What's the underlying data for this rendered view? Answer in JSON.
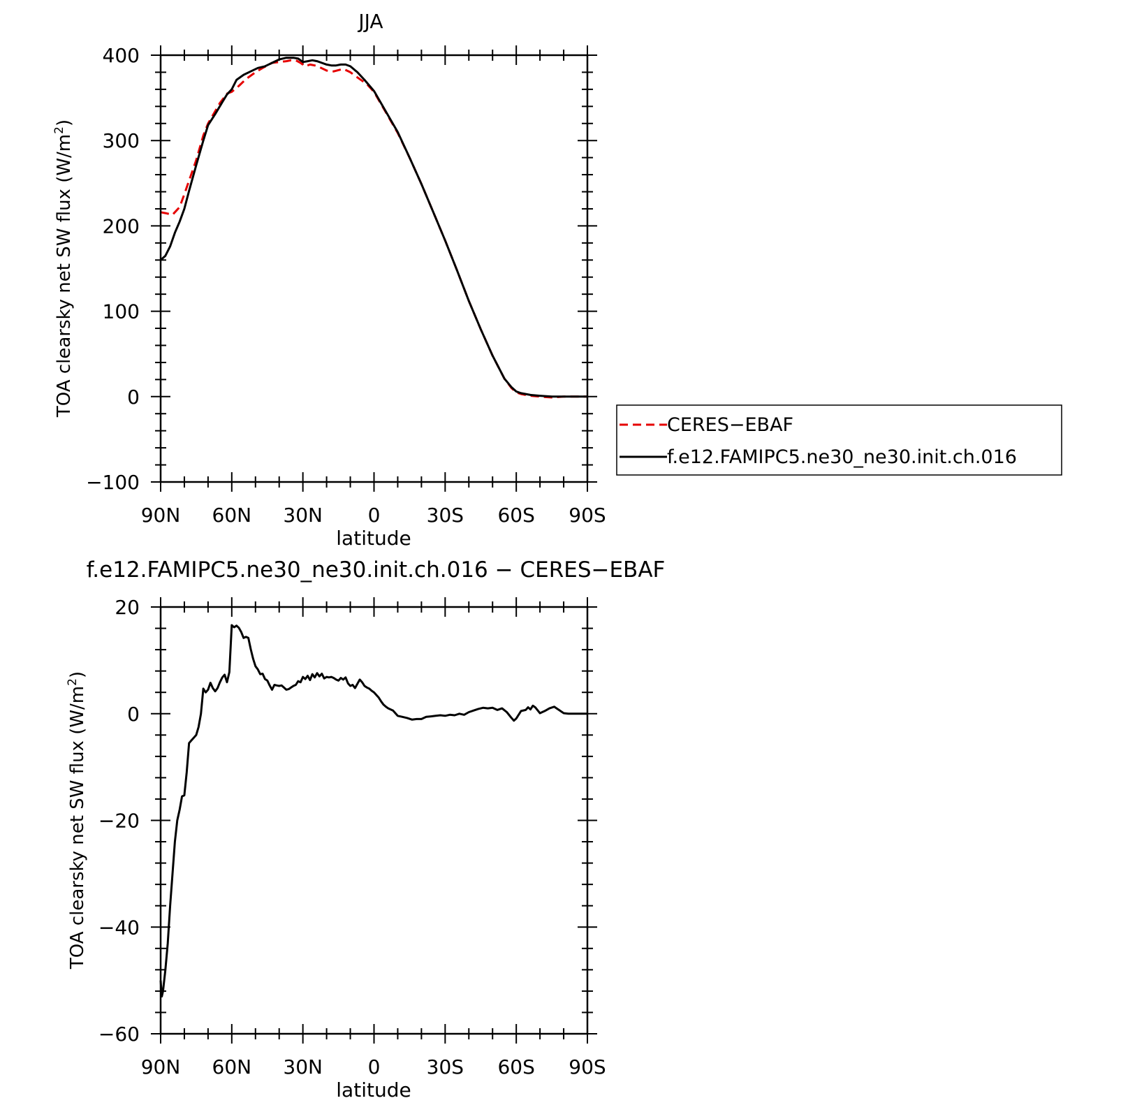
{
  "chart_data": [
    {
      "type": "line",
      "title": "JJA",
      "xlabel": "latitude",
      "ylabel": "TOA clearsky net SW flux (W/m",
      "ylabel_sup": "2",
      "ylabel_close": ")",
      "xlim": [
        90,
        -90
      ],
      "ylim": [
        -100,
        400
      ],
      "x_ticks": [
        90,
        60,
        30,
        0,
        -30,
        -60,
        -90
      ],
      "x_tick_labels": [
        "90N",
        "60N",
        "30N",
        "0",
        "30S",
        "60S",
        "90S"
      ],
      "y_ticks": [
        -100,
        0,
        100,
        200,
        300,
        400
      ],
      "y_tick_labels": [
        "−100",
        "0",
        "100",
        "200",
        "300",
        "400"
      ],
      "grid": false,
      "legend": {
        "placement": "right",
        "entries": [
          "CERES−EBAF",
          "f.e12.FAMIPC5.ne30_ne30.init.ch.016"
        ]
      },
      "series": [
        {
          "name": "CERES−EBAF",
          "color": "#e60000",
          "dash": "dashed",
          "x": [
            90,
            88,
            85,
            82,
            80,
            75,
            72,
            70,
            65,
            62,
            60,
            57,
            54,
            50,
            47,
            43,
            40,
            37,
            35,
            33,
            31,
            29,
            27,
            25,
            23,
            20,
            17,
            13,
            10,
            7,
            3,
            0,
            -5,
            -10,
            -15,
            -20,
            -25,
            -30,
            -35,
            -40,
            -45,
            -50,
            -55,
            -58,
            -60,
            -62,
            -64,
            -66,
            -70,
            -75,
            -80,
            -85,
            -90
          ],
          "y": [
            216,
            215,
            213,
            222,
            237,
            277,
            306,
            320,
            344,
            355,
            357,
            364,
            372,
            380,
            385,
            391,
            392,
            393,
            394,
            394,
            391,
            387,
            389,
            388,
            386,
            382,
            381,
            384,
            380,
            374,
            366,
            357,
            333,
            309,
            280,
            249,
            216,
            183,
            148,
            112,
            79,
            48,
            21,
            10,
            5,
            3,
            2,
            1,
            0,
            -1,
            0,
            0,
            0
          ]
        },
        {
          "name": "f.e12.FAMIPC5.ne30_ne30.init.ch.016",
          "color": "#000000",
          "dash": "solid",
          "x": [
            90,
            88,
            86,
            84,
            82,
            80,
            78,
            75,
            72,
            70,
            67,
            64,
            62,
            60,
            58,
            55,
            52,
            49,
            46,
            43,
            40,
            37,
            34,
            32,
            30,
            28,
            26,
            24,
            22,
            20,
            18,
            16,
            14,
            12,
            10,
            7,
            4,
            0,
            -5,
            -10,
            -15,
            -20,
            -25,
            -30,
            -35,
            -40,
            -45,
            -50,
            -55,
            -58,
            -60,
            -62,
            -64,
            -66,
            -70,
            -75,
            -80,
            -85,
            -90
          ],
          "y": [
            160,
            165,
            176,
            192,
            205,
            220,
            241,
            271,
            300,
            318,
            331,
            345,
            354,
            360,
            371,
            377,
            381,
            385,
            387,
            391,
            395,
            397,
            397,
            396,
            392,
            393,
            394,
            393,
            391,
            389,
            388,
            388,
            389,
            389,
            387,
            380,
            371,
            358,
            334,
            310,
            280,
            249,
            216,
            183,
            148,
            112,
            79,
            48,
            21,
            11,
            6,
            4,
            3,
            2,
            1,
            0,
            0,
            0,
            0
          ]
        }
      ]
    },
    {
      "type": "line",
      "title": "f.e12.FAMIPC5.ne30_ne30.init.ch.016 − CERES−EBAF",
      "xlabel": "latitude",
      "ylabel": "TOA clearsky net SW flux (W/m",
      "ylabel_sup": "2",
      "ylabel_close": ")",
      "xlim": [
        90,
        -90
      ],
      "ylim": [
        -60,
        20
      ],
      "x_ticks": [
        90,
        60,
        30,
        0,
        -30,
        -60,
        -90
      ],
      "x_tick_labels": [
        "90N",
        "60N",
        "30N",
        "0",
        "30S",
        "60S",
        "90S"
      ],
      "y_ticks": [
        -60,
        -40,
        -20,
        0,
        20
      ],
      "y_tick_labels": [
        "−60",
        "−40",
        "−20",
        "0",
        "20"
      ],
      "grid": false,
      "series": [
        {
          "color": "#000000",
          "dash": "solid",
          "x": [
            90,
            89.5,
            89,
            88.5,
            88,
            87,
            86,
            85,
            84,
            83,
            82,
            81,
            80,
            79,
            78,
            77,
            76,
            75,
            74,
            73,
            72,
            71,
            70,
            69,
            68,
            67,
            66,
            65,
            64,
            63,
            62,
            61,
            60,
            59,
            58,
            57,
            56,
            55,
            54,
            53,
            52,
            51,
            50,
            49,
            48,
            47,
            46,
            45,
            44,
            43,
            42,
            41,
            40,
            39,
            38,
            37,
            36,
            35,
            34,
            33,
            32,
            31,
            30,
            29,
            28,
            27,
            26,
            25,
            24,
            23,
            22,
            21,
            20,
            19,
            18,
            17,
            16,
            15,
            14,
            13,
            12,
            11,
            10,
            9,
            8,
            7,
            6,
            5,
            4,
            3,
            2,
            1,
            0,
            -1,
            -2,
            -3,
            -4,
            -5,
            -6,
            -8,
            -10,
            -12,
            -14,
            -16,
            -18,
            -20,
            -22,
            -24,
            -26,
            -28,
            -30,
            -32,
            -34,
            -36,
            -38,
            -40,
            -42,
            -44,
            -46,
            -48,
            -50,
            -52,
            -54,
            -56,
            -58,
            -59,
            -60,
            -62,
            -64,
            -65,
            -66,
            -67,
            -68,
            -70,
            -72,
            -74,
            -76,
            -77,
            -78,
            -80,
            -82,
            -84,
            -86,
            -88,
            -90
          ],
          "y": [
            -50,
            -53,
            -52,
            -50,
            -48,
            -43,
            -36,
            -30,
            -24,
            -20,
            -18,
            -15.5,
            -15.3,
            -11,
            -5.5,
            -5,
            -4.5,
            -4,
            -2.5,
            0,
            4.7,
            4,
            4.5,
            5.8,
            4.8,
            4.2,
            4.8,
            5.9,
            6.8,
            7.3,
            5.9,
            7.8,
            16.6,
            16.2,
            16.5,
            16.1,
            15.3,
            14.2,
            14.4,
            14.2,
            12.1,
            10.3,
            8.9,
            8.3,
            7.4,
            7.5,
            6.5,
            6.2,
            5.3,
            4.5,
            5.4,
            5.3,
            5.2,
            5.3,
            4.9,
            4.5,
            4.6,
            4.9,
            5.2,
            5.4,
            6.1,
            5.9,
            6.9,
            6.5,
            7.1,
            6.3,
            7.4,
            6.8,
            7.6,
            7.0,
            7.5,
            6.6,
            6.9,
            6.8,
            6.9,
            6.7,
            6.4,
            6.2,
            6.7,
            6.4,
            6.8,
            5.7,
            5.2,
            5.4,
            4.8,
            5.6,
            6.4,
            5.9,
            5.2,
            4.9,
            4.7,
            4.3,
            4.0,
            3.5,
            3.0,
            2.3,
            1.7,
            1.3,
            1.0,
            0.6,
            -0.4,
            -0.6,
            -0.8,
            -1.1,
            -1.0,
            -1.0,
            -0.6,
            -0.5,
            -0.4,
            -0.3,
            -0.4,
            -0.2,
            -0.3,
            0.0,
            -0.2,
            0.3,
            0.6,
            0.9,
            1.1,
            1.0,
            1.1,
            0.7,
            1.0,
            0.3,
            -0.8,
            -1.3,
            -0.9,
            0.5,
            0.7,
            1.2,
            0.8,
            1.5,
            1.2,
            0.1,
            0.5,
            1.0,
            1.3,
            1.0,
            0.7,
            0.1,
            0,
            0,
            0,
            0,
            0
          ]
        }
      ]
    }
  ]
}
